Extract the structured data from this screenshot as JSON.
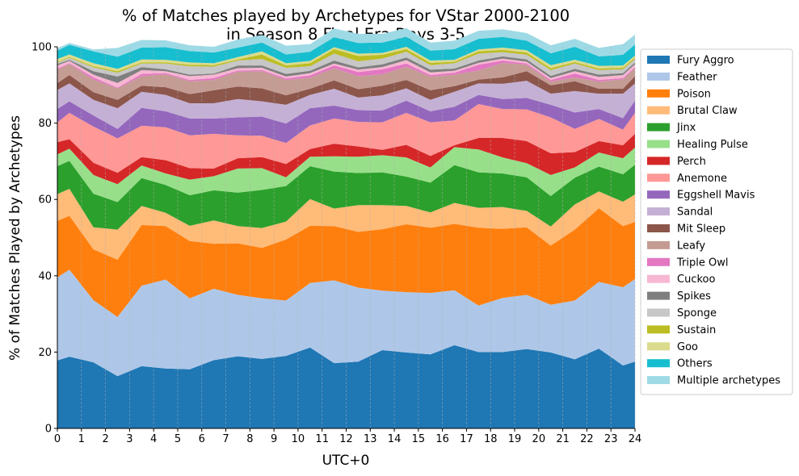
{
  "chart_data": {
    "type": "area",
    "title_line1": "% of Matches played by Archetypes for VStar 2000-2100",
    "title_line2": "in Season 8 Final Era Days 3-5",
    "xlabel": "UTC+0",
    "ylabel": "% of Matches Played by Archetypes",
    "xlim": [
      0,
      24
    ],
    "ylim": [
      0,
      100
    ],
    "xticks": [
      "0",
      "1",
      "2",
      "3",
      "4",
      "5",
      "6",
      "7",
      "8",
      "9",
      "10",
      "11",
      "12",
      "13",
      "14",
      "15",
      "16",
      "17",
      "18",
      "19",
      "20",
      "21",
      "22",
      "23",
      "24"
    ],
    "yticks": [
      "0",
      "20",
      "40",
      "60",
      "80",
      "100"
    ],
    "x_grid": true,
    "legend_position": "outside-right",
    "x": [
      0,
      0.5,
      1.5,
      2.5,
      3.5,
      4.5,
      5.5,
      6.5,
      7.5,
      8.5,
      9.5,
      10.5,
      11.5,
      12.5,
      13.5,
      14.5,
      15.5,
      16.5,
      17.5,
      18.5,
      19.5,
      20.5,
      21.5,
      22.5,
      23.5,
      24
    ],
    "series": [
      {
        "name": "Fury Aggro",
        "color": "#1f77b4",
        "values": [
          17.8,
          18.8,
          17.3,
          13.7,
          16.3,
          15.7,
          15.5,
          17.9,
          18.9,
          18.2,
          19.0,
          21.2,
          17.1,
          17.5,
          20.5,
          19.9,
          19.4,
          21.8,
          20.0,
          20.0,
          20.8,
          19.9,
          18.1,
          20.9,
          16.5,
          17.5
        ]
      },
      {
        "name": "Feather",
        "color": "#aec7e8",
        "values": [
          21.8,
          22.8,
          16.3,
          15.5,
          21.1,
          23.3,
          18.6,
          18.7,
          16.1,
          15.9,
          14.5,
          16.9,
          21.7,
          19.4,
          15.6,
          15.8,
          16.1,
          14.4,
          12.2,
          14.2,
          14.2,
          12.5,
          15.4,
          17.5,
          20.5,
          21.6
        ]
      },
      {
        "name": "Poison",
        "color": "#ff7f0e",
        "values": [
          14.8,
          14.1,
          13.3,
          15.0,
          15.9,
          14.0,
          15.0,
          11.8,
          13.5,
          13.2,
          16.0,
          15.0,
          14.2,
          14.6,
          16.1,
          17.8,
          17.1,
          17.4,
          20.4,
          18.1,
          17.7,
          15.5,
          18.6,
          19.3,
          16.0,
          15.0
        ]
      },
      {
        "name": "Brutal Claw",
        "color": "#ffbb78",
        "values": [
          7.0,
          7.1,
          5.8,
          7.9,
          5.0,
          3.5,
          4.0,
          6.1,
          4.5,
          5.2,
          4.7,
          7.0,
          4.6,
          7.0,
          6.3,
          4.8,
          4.0,
          5.5,
          5.2,
          5.7,
          4.3,
          5.0,
          6.6,
          4.4,
          6.4,
          7.2
        ]
      },
      {
        "name": "Jinx",
        "color": "#2ca02c",
        "values": [
          7.3,
          7.3,
          8.8,
          7.2,
          7.3,
          7.3,
          8.0,
          7.9,
          8.8,
          10.0,
          9.3,
          8.6,
          9.7,
          8.4,
          8.6,
          7.7,
          7.8,
          9.9,
          9.3,
          8.8,
          8.8,
          8.0,
          7.0,
          6.5,
          7.2,
          7.8
        ]
      },
      {
        "name": "Healing Pulse",
        "color": "#98df8a",
        "values": [
          3.1,
          3.2,
          4.9,
          4.7,
          3.3,
          3.0,
          4.1,
          3.7,
          6.3,
          5.7,
          2.3,
          2.5,
          4.0,
          4.3,
          4.5,
          5.0,
          4.0,
          4.7,
          6.0,
          4.2,
          3.7,
          5.5,
          2.7,
          3.7,
          4.2,
          4.5
        ]
      },
      {
        "name": "Perch",
        "color": "#d62728",
        "values": [
          3.2,
          2.5,
          3.2,
          3.0,
          2.2,
          3.5,
          3.0,
          2.0,
          2.7,
          2.9,
          3.5,
          2.0,
          3.3,
          2.7,
          1.4,
          3.3,
          3.0,
          0.5,
          3.0,
          5.1,
          5.8,
          5.7,
          4.0,
          3.0,
          3.4,
          3.6
        ]
      },
      {
        "name": "Anemone",
        "color": "#ff9896",
        "values": [
          5.2,
          6.9,
          9.5,
          9.0,
          8.2,
          8.6,
          8.6,
          9.1,
          6.0,
          5.6,
          5.5,
          6.2,
          6.6,
          6.4,
          7.2,
          8.4,
          8.8,
          6.5,
          8.9,
          7.6,
          8.3,
          9.4,
          6.1,
          5.8,
          4.1,
          5.5
        ]
      },
      {
        "name": "Eggshell Mavis",
        "color": "#9467bd",
        "values": [
          3.5,
          3.0,
          2.9,
          2.5,
          4.7,
          4.2,
          4.4,
          4.0,
          4.7,
          5.0,
          5.1,
          4.5,
          3.4,
          3.1,
          3.1,
          3.2,
          2.9,
          3.6,
          2.4,
          2.6,
          3.0,
          3.3,
          4.3,
          2.6,
          3.0,
          3.2
        ]
      },
      {
        "name": "Sandal",
        "color": "#c5b0d5",
        "values": [
          5.0,
          4.7,
          4.1,
          5.4,
          4.2,
          4.3,
          4.0,
          4.0,
          4.8,
          4.0,
          4.9,
          3.5,
          4.4,
          3.3,
          4.0,
          3.2,
          3.0,
          3.9,
          3.0,
          4.0,
          4.5,
          2.9,
          5.6,
          4.0,
          6.4,
          4.5
        ]
      },
      {
        "name": "Mit Sleep",
        "color": "#8c564b",
        "values": [
          1.8,
          2.2,
          2.0,
          2.2,
          1.6,
          2.0,
          2.4,
          3.4,
          3.3,
          3.4,
          2.5,
          1.6,
          2.2,
          2.2,
          2.5,
          2.2,
          2.5,
          1.5,
          1.0,
          1.7,
          2.5,
          2.2,
          2.6,
          1.3,
          1.3,
          1.9
        ]
      },
      {
        "name": "Leafy",
        "color": "#c49c94",
        "values": [
          3.5,
          2.9,
          3.3,
          3.0,
          2.5,
          3.4,
          3.4,
          2.7,
          3.9,
          4.5,
          4.0,
          2.9,
          3.2,
          3.4,
          3.0,
          3.5,
          3.6,
          3.0,
          2.4,
          3.8,
          1.7,
          1.0,
          1.0,
          1.9,
          2.5,
          2.1
        ]
      },
      {
        "name": "Triple Owl",
        "color": "#e377c2",
        "values": [
          0.3,
          0.2,
          0.6,
          0.2,
          0.6,
          0.3,
          0.3,
          0.5,
          0.3,
          0.3,
          0.4,
          0.6,
          0.7,
          1.1,
          1.3,
          0.8,
          0.4,
          0.5,
          1.5,
          0.6,
          0.3,
          0.4,
          1.0,
          0.4,
          0.3,
          0.3
        ]
      },
      {
        "name": "Cuckoo",
        "color": "#f7b6d2",
        "values": [
          0.8,
          0.6,
          0.7,
          1.2,
          1.0,
          0.5,
          1.0,
          0.9,
          0.6,
          0.6,
          0.5,
          0.6,
          0.5,
          0.6,
          0.6,
          0.9,
          0.7,
          0.5,
          0.5,
          0.5,
          0.5,
          0.5,
          0.6,
          0.8,
          0.8,
          0.7
        ]
      },
      {
        "name": "Spikes",
        "color": "#7f7f7f",
        "values": [
          0.4,
          0.3,
          0.9,
          1.7,
          0.8,
          0.5,
          0.4,
          0.3,
          0.7,
          0.6,
          0.7,
          0.6,
          0.8,
          0.6,
          0.7,
          0.7,
          0.7,
          0.6,
          0.6,
          0.6,
          0.6,
          0.6,
          0.6,
          0.6,
          0.5,
          0.5
        ]
      },
      {
        "name": "Sponge",
        "color": "#c7c7c7",
        "values": [
          0.3,
          0.5,
          1.0,
          1.0,
          0.9,
          1.5,
          2.2,
          1.8,
          1.3,
          1.7,
          1.6,
          1.2,
          1.8,
          1.6,
          1.5,
          1.5,
          1.2,
          1.4,
          1.8,
          1.1,
          1.2,
          1.5,
          1.4,
          1.2,
          1.0,
          0.9
        ]
      },
      {
        "name": "Sustain",
        "color": "#bcbd22",
        "values": [
          0.2,
          0.2,
          0.3,
          0.4,
          0.3,
          0.3,
          0.4,
          0.4,
          0.3,
          1.2,
          0.6,
          0.8,
          1.2,
          1.4,
          1.0,
          0.7,
          0.6,
          0.4,
          0.6,
          0.6,
          0.6,
          0.5,
          0.4,
          0.4,
          0.4,
          0.4
        ]
      },
      {
        "name": "Goo",
        "color": "#dbdb8d",
        "values": [
          0.8,
          0.7,
          0.8,
          0.6,
          0.8,
          0.7,
          0.6,
          0.5,
          0.6,
          0.8,
          0.6,
          0.6,
          0.5,
          0.6,
          0.5,
          0.6,
          0.6,
          0.5,
          0.5,
          0.6,
          0.6,
          0.8,
          0.6,
          0.7,
          0.6,
          0.5
        ]
      },
      {
        "name": "Others",
        "color": "#17becf",
        "values": [
          2.2,
          2.5,
          3.1,
          3.2,
          3.1,
          3.3,
          3.0,
          2.8,
          2.5,
          2.3,
          2.3,
          2.4,
          2.6,
          2.8,
          2.7,
          2.6,
          2.6,
          2.8,
          2.8,
          2.8,
          2.5,
          3.1,
          3.4,
          2.5,
          2.8,
          2.9
        ]
      },
      {
        "name": "Multiple archetypes",
        "color": "#9edae5",
        "values": [
          0.6,
          0.5,
          0.5,
          2.3,
          2.0,
          1.8,
          1.5,
          1.5,
          2.1,
          2.0,
          2.3,
          2.0,
          2.3,
          2.4,
          2.3,
          2.3,
          2.1,
          2.2,
          2.1,
          2.0,
          2.0,
          2.1,
          2.1,
          2.2,
          2.8,
          2.6
        ]
      }
    ]
  }
}
